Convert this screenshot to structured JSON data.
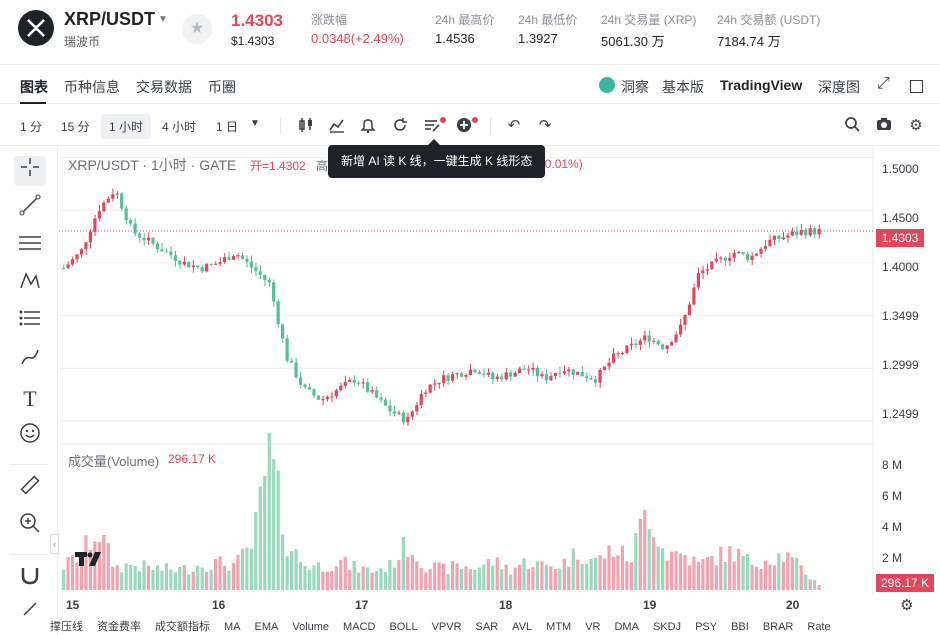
{
  "header": {
    "pair": "XRP/USDT",
    "pair_sub": "瑞波币",
    "price": "1.4303",
    "price_sub": "$1.4303",
    "change_label": "涨跌幅",
    "change_value": "0.0348(+2.49%)",
    "high_label": "24h 最高价",
    "high_value": "1.4536",
    "low_label": "24h 最低价",
    "low_value": "1.3927",
    "vol_label": "24h 交易量 (XRP)",
    "vol_value": "5061.30 万",
    "turnover_label": "24h 交易额 (USDT)",
    "turnover_value": "7184.74 万"
  },
  "tabs": [
    "图表",
    "币种信息",
    "交易数据",
    "币圈"
  ],
  "right_tabs": {
    "insight": "洞察",
    "basic": "基本版",
    "tradingview": "TradingView",
    "depth": "深度图"
  },
  "toolbar": {
    "timeframes": [
      "1 分",
      "15 分",
      "1 小时",
      "4 小时",
      "1 日"
    ],
    "active_timeframe": "1 小时"
  },
  "legend": {
    "title": "XRP/USDT · 1小时 · GATE",
    "open": "开=1.4302",
    "high_partial": "高",
    "change": "00 (+0.01%)"
  },
  "tooltip": "新增 AI 读 K 线，一键生成 K 线形态",
  "y_axis": [
    "1.5000",
    "1.4500",
    "1.4000",
    "1.3499",
    "1.2999",
    "1.2499"
  ],
  "price_tag": "1.4303",
  "volume_legend": {
    "label": "成交量(Volume)",
    "value": "296.17 K"
  },
  "volume_axis": [
    "8 M",
    "6 M",
    "4 M",
    "2 M"
  ],
  "volume_tag": "296.17 K",
  "x_axis": [
    "15",
    "16",
    "17",
    "18",
    "19",
    "20"
  ],
  "indicators": [
    "撑压线",
    "资金费率",
    "成交额指标",
    "MA",
    "EMA",
    "Volume",
    "MACD",
    "BOLL",
    "VPVR",
    "SAR",
    "AVL",
    "MTM",
    "VR",
    "DMA",
    "SKDJ",
    "PSY",
    "BBI",
    "BRAR",
    "Rate"
  ],
  "colors": {
    "up": "#e0475b",
    "down": "#53bf93",
    "up_volume": "#f2a3ae",
    "down_volume": "#9ad9bd"
  },
  "chart_data": {
    "type": "candlestick",
    "x_labels": [
      "15",
      "16",
      "17",
      "18",
      "19",
      "20"
    ],
    "y_range": [
      1.23,
      1.51
    ],
    "last_price": 1.4303,
    "price_trend": [
      1.395,
      1.41,
      1.45,
      1.47,
      1.43,
      1.42,
      1.41,
      1.4,
      1.395,
      1.4,
      1.41,
      1.395,
      1.38,
      1.31,
      1.28,
      1.27,
      1.28,
      1.29,
      1.275,
      1.26,
      1.25,
      1.28,
      1.29,
      1.295,
      1.3,
      1.29,
      1.295,
      1.3,
      1.29,
      1.3,
      1.295,
      1.29,
      1.31,
      1.32,
      1.33,
      1.32,
      1.34,
      1.39,
      1.4,
      1.41,
      1.405,
      1.42,
      1.425,
      1.43,
      1.43
    ],
    "volume_trend_M": [
      1.5,
      2.2,
      3.8,
      1.4,
      1.6,
      1.4,
      1.3,
      1.3,
      1.6,
      1.7,
      1.6,
      2.8,
      8.6,
      3.0,
      1.6,
      1.5,
      1.8,
      1.4,
      1.2,
      1.5,
      2.9,
      1.6,
      1.3,
      1.5,
      1.4,
      1.8,
      1.3,
      1.8,
      1.5,
      1.6,
      2.4,
      1.8,
      2.6,
      1.9,
      5.3,
      2.3,
      2.3,
      1.6,
      2.1,
      2.4,
      1.7,
      2.0,
      2.2,
      1.3,
      0.3
    ]
  }
}
